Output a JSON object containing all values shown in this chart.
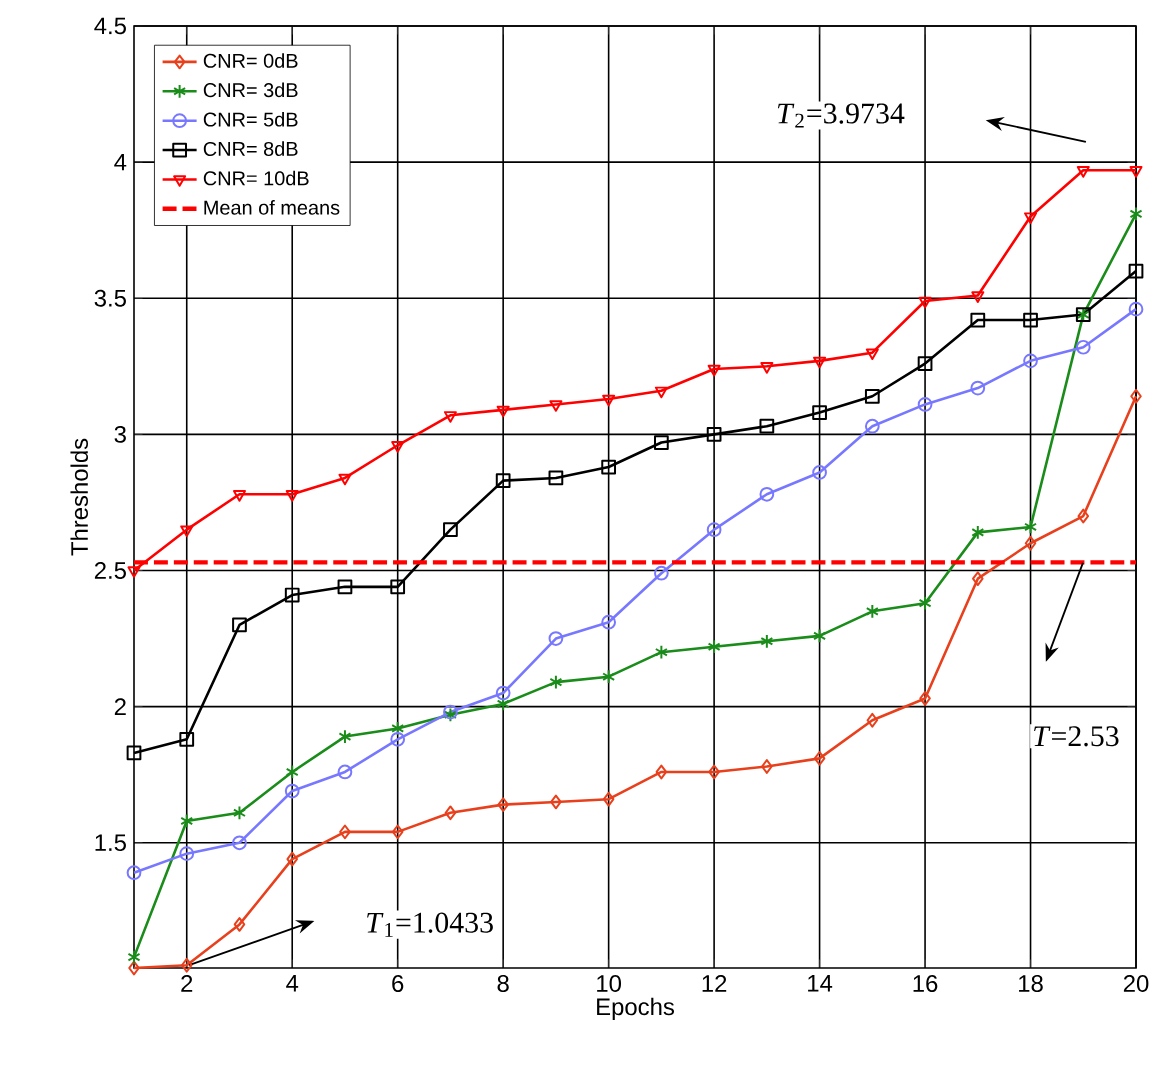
{
  "chart_data": {
    "type": "line",
    "xlabel": "Epochs",
    "ylabel": "Thresholds",
    "x": [
      1,
      2,
      3,
      4,
      5,
      6,
      7,
      8,
      9,
      10,
      11,
      12,
      13,
      14,
      15,
      16,
      17,
      18,
      19,
      20
    ],
    "xlim": [
      1,
      20
    ],
    "xticks": [
      2,
      4,
      6,
      8,
      10,
      12,
      14,
      16,
      18,
      20
    ],
    "ylim": [
      1.04,
      4.5
    ],
    "yticks": [
      1.5,
      2,
      2.5,
      3,
      3.5,
      4,
      4.5
    ],
    "grid": true,
    "legend": "top left",
    "series": [
      {
        "name": "CNR= 0dB",
        "color": "#e8401c",
        "marker": "diamond",
        "values": [
          1.04,
          1.05,
          1.2,
          1.44,
          1.54,
          1.54,
          1.61,
          1.64,
          1.65,
          1.66,
          1.76,
          1.76,
          1.78,
          1.81,
          1.95,
          2.03,
          2.47,
          2.6,
          2.7,
          3.14
        ]
      },
      {
        "name": "CNR= 3dB",
        "color": "#1a8c1a",
        "marker": "cross",
        "values": [
          1.08,
          1.58,
          1.61,
          1.76,
          1.89,
          1.92,
          1.97,
          2.01,
          2.09,
          2.11,
          2.2,
          2.22,
          2.24,
          2.26,
          2.35,
          2.38,
          2.64,
          2.66,
          3.44,
          3.81
        ]
      },
      {
        "name": "CNR= 5dB",
        "color": "#7777ff",
        "marker": "circle",
        "values": [
          1.39,
          1.46,
          1.5,
          1.69,
          1.76,
          1.88,
          1.98,
          2.05,
          2.25,
          2.31,
          2.49,
          2.65,
          2.78,
          2.86,
          3.03,
          3.11,
          3.17,
          3.27,
          3.32,
          3.46
        ]
      },
      {
        "name": "CNR= 8dB",
        "color": "#000000",
        "marker": "square",
        "values": [
          1.83,
          1.88,
          2.3,
          2.41,
          2.44,
          2.44,
          2.65,
          2.83,
          2.84,
          2.88,
          2.97,
          3.0,
          3.03,
          3.08,
          3.14,
          3.26,
          3.42,
          3.42,
          3.44,
          3.6
        ]
      },
      {
        "name": "CNR= 10dB",
        "color": "#ff0000",
        "marker": "triangle",
        "values": [
          2.5,
          2.65,
          2.78,
          2.78,
          2.84,
          2.96,
          3.07,
          3.09,
          3.11,
          3.13,
          3.16,
          3.24,
          3.25,
          3.27,
          3.3,
          3.49,
          3.51,
          3.8,
          3.97,
          3.97
        ]
      }
    ],
    "ref_lines": [
      {
        "axis": "y",
        "value": 2.53,
        "label": "Mean of means",
        "color": "#ff0000",
        "line_style": "dashed"
      }
    ],
    "annotations": [
      "*T*$_{1}$=1.0433",
      "*T*$_{2}$=3.9734",
      "*T*=2.53"
    ]
  }
}
